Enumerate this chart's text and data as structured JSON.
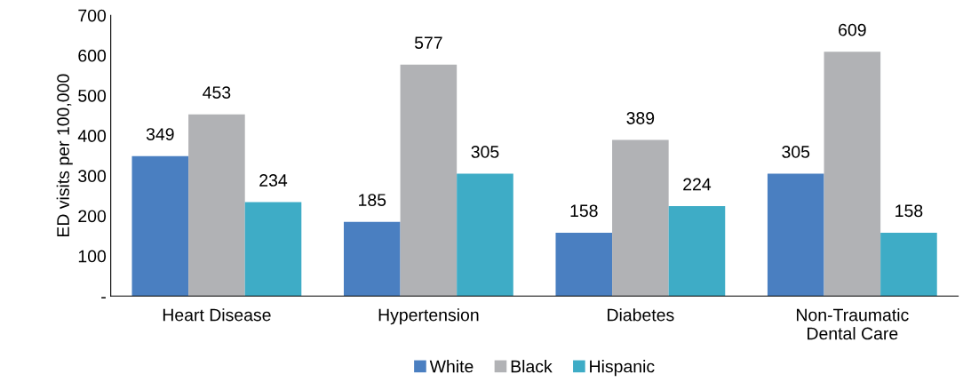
{
  "chart_data": {
    "type": "bar",
    "ylabel": "ED visits per 100,000",
    "categories": [
      "Heart Disease",
      "Hypertension",
      "Diabetes",
      "Non-Traumatic\nDental Care"
    ],
    "series": [
      {
        "name": "White",
        "color": "#4a7fc1",
        "values": [
          349,
          185,
          158,
          305
        ]
      },
      {
        "name": "Black",
        "color": "#b1b2b5",
        "values": [
          453,
          577,
          389,
          609
        ]
      },
      {
        "name": "Hispanic",
        "color": "#3eacc6",
        "values": [
          234,
          305,
          224,
          158
        ]
      }
    ],
    "ylim": [
      0,
      700
    ],
    "yticks": [
      {
        "value": 0,
        "label": "-"
      },
      100,
      200,
      300,
      400,
      500,
      600,
      700
    ],
    "grid": false,
    "legend": "bottom",
    "data_labels": true
  }
}
